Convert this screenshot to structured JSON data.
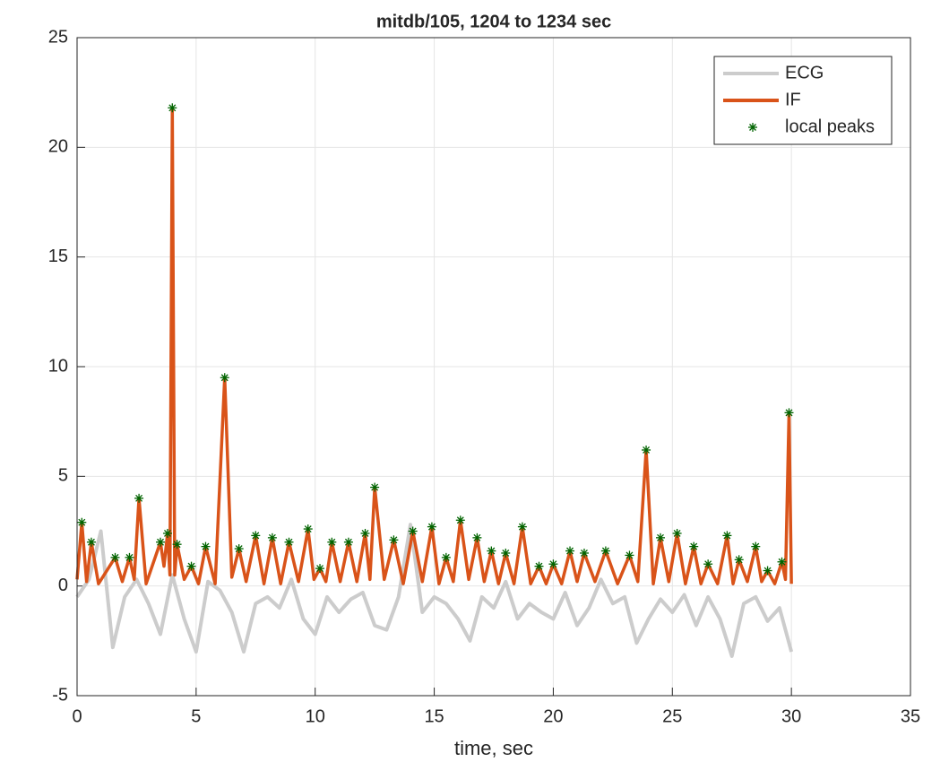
{
  "chart_data": {
    "type": "line",
    "title": "mitdb/105, 1204 to 1234 sec",
    "xlabel": "time, sec",
    "xlim": [
      0,
      35
    ],
    "xticks": [
      0,
      5,
      10,
      15,
      20,
      25,
      30,
      35
    ],
    "ylim": [
      -5,
      25
    ],
    "yticks": [
      -5,
      0,
      5,
      10,
      15,
      20,
      25
    ],
    "grid": true,
    "legend": "northeast",
    "series": [
      {
        "name": "ECG",
        "color": "#cccccc",
        "x": [
          0,
          0.5,
          1,
          1.5,
          2,
          2.5,
          3,
          3.5,
          4,
          4.5,
          5,
          5.5,
          6,
          6.5,
          7,
          7.5,
          8,
          8.5,
          9,
          9.5,
          10,
          10.5,
          11,
          11.5,
          12,
          12.5,
          13,
          13.5,
          14,
          14.5,
          15,
          15.5,
          16,
          16.5,
          17,
          17.5,
          18,
          18.5,
          19,
          19.5,
          20,
          20.5,
          21,
          21.5,
          22,
          22.5,
          23,
          23.5,
          24,
          24.5,
          25,
          25.5,
          26,
          26.5,
          27,
          27.5,
          28,
          28.5,
          29,
          29.5,
          30
        ],
        "values": [
          -0.5,
          0.3,
          2.5,
          -2.8,
          -0.5,
          0.3,
          -0.8,
          -2.2,
          0.5,
          -1.5,
          -3,
          0.2,
          -0.2,
          -1.2,
          -3,
          -0.8,
          -0.5,
          -1,
          0.3,
          -1.5,
          -2.2,
          -0.5,
          -1.2,
          -0.6,
          -0.3,
          -1.8,
          -2,
          -0.5,
          2.8,
          -1.2,
          -0.5,
          -0.8,
          -1.5,
          -2.5,
          -0.5,
          -1,
          0.2,
          -1.5,
          -0.8,
          -1.2,
          -1.5,
          -0.3,
          -1.8,
          -1,
          0.3,
          -0.8,
          -0.5,
          -2.6,
          -1.5,
          -0.6,
          -1.2,
          -0.4,
          -1.8,
          -0.5,
          -1.5,
          -3.2,
          -0.8,
          -0.5,
          -1.6,
          -1,
          -3
        ]
      },
      {
        "name": "IF",
        "color": "#d95319",
        "x": [
          0,
          0.2,
          0.4,
          0.6,
          0.9,
          1.6,
          1.9,
          2.2,
          2.4,
          2.6,
          2.9,
          3.5,
          3.65,
          3.8,
          3.9,
          4.0,
          4.1,
          4.2,
          4.5,
          4.8,
          5.1,
          5.4,
          5.8,
          6.2,
          6.5,
          6.8,
          7.1,
          7.5,
          7.85,
          8.2,
          8.55,
          8.9,
          9.3,
          9.7,
          9.95,
          10.2,
          10.45,
          10.7,
          11.05,
          11.4,
          11.75,
          12.1,
          12.3,
          12.5,
          12.9,
          13.3,
          13.7,
          14.1,
          14.5,
          14.9,
          15.2,
          15.5,
          15.8,
          16.1,
          16.45,
          16.8,
          17.1,
          17.4,
          17.7,
          18.0,
          18.35,
          18.7,
          19.05,
          19.4,
          19.7,
          20.0,
          20.35,
          20.7,
          21.0,
          21.3,
          21.75,
          22.2,
          22.7,
          23.2,
          23.55,
          23.9,
          24.2,
          24.5,
          24.85,
          25.2,
          25.55,
          25.9,
          26.2,
          26.5,
          26.9,
          27.3,
          27.55,
          27.8,
          28.15,
          28.5,
          28.75,
          29.0,
          29.3,
          29.6,
          29.75,
          29.9,
          30.0
        ],
        "values": [
          0.3,
          2.9,
          0.2,
          2.0,
          0.1,
          1.3,
          0.2,
          1.3,
          0.3,
          4.0,
          0.1,
          2.0,
          0.9,
          2.4,
          0.5,
          21.8,
          0.5,
          1.9,
          0.3,
          0.9,
          0.1,
          1.8,
          0.1,
          9.5,
          0.4,
          1.7,
          0.2,
          2.3,
          0.1,
          2.2,
          0.1,
          2.0,
          0.2,
          2.6,
          0.3,
          0.8,
          0.2,
          2.0,
          0.2,
          2.0,
          0.2,
          2.4,
          0.3,
          4.5,
          0.3,
          2.1,
          0.1,
          2.5,
          0.2,
          2.7,
          0.1,
          1.3,
          0.2,
          3.0,
          0.3,
          2.2,
          0.2,
          1.6,
          0.1,
          1.5,
          0.1,
          2.7,
          0.1,
          0.9,
          0.1,
          1.0,
          0.1,
          1.6,
          0.2,
          1.5,
          0.2,
          1.6,
          0.1,
          1.4,
          0.2,
          6.2,
          0.1,
          2.2,
          0.2,
          2.4,
          0.1,
          1.8,
          0.1,
          1.0,
          0.1,
          2.3,
          0.1,
          1.2,
          0.2,
          1.8,
          0.2,
          0.7,
          0.1,
          1.1,
          0.3,
          7.9,
          0.1
        ]
      },
      {
        "name": "local peaks",
        "color": "#006400",
        "marker": "asterisk",
        "x": [
          0.2,
          0.6,
          1.6,
          2.2,
          2.6,
          3.5,
          3.8,
          4.0,
          4.2,
          4.8,
          5.4,
          6.2,
          6.8,
          7.5,
          8.2,
          8.9,
          9.7,
          10.2,
          10.7,
          11.4,
          12.1,
          12.5,
          13.3,
          14.1,
          14.9,
          15.5,
          16.1,
          16.8,
          17.4,
          18.0,
          18.7,
          19.4,
          20.0,
          20.7,
          21.3,
          22.2,
          23.2,
          23.9,
          24.5,
          25.2,
          25.9,
          26.5,
          27.3,
          27.8,
          28.5,
          29.0,
          29.6,
          29.9
        ],
        "values": [
          2.9,
          2.0,
          1.3,
          1.3,
          4.0,
          2.0,
          2.4,
          21.8,
          1.9,
          0.9,
          1.8,
          9.5,
          1.7,
          2.3,
          2.2,
          2.0,
          2.6,
          0.8,
          2.0,
          2.0,
          2.4,
          4.5,
          2.1,
          2.5,
          2.7,
          1.3,
          3.0,
          2.2,
          1.6,
          1.5,
          2.7,
          0.9,
          1.0,
          1.6,
          1.5,
          1.6,
          1.4,
          6.2,
          2.2,
          2.4,
          1.8,
          1.0,
          2.3,
          1.2,
          1.8,
          0.7,
          1.1,
          7.9
        ]
      }
    ]
  }
}
